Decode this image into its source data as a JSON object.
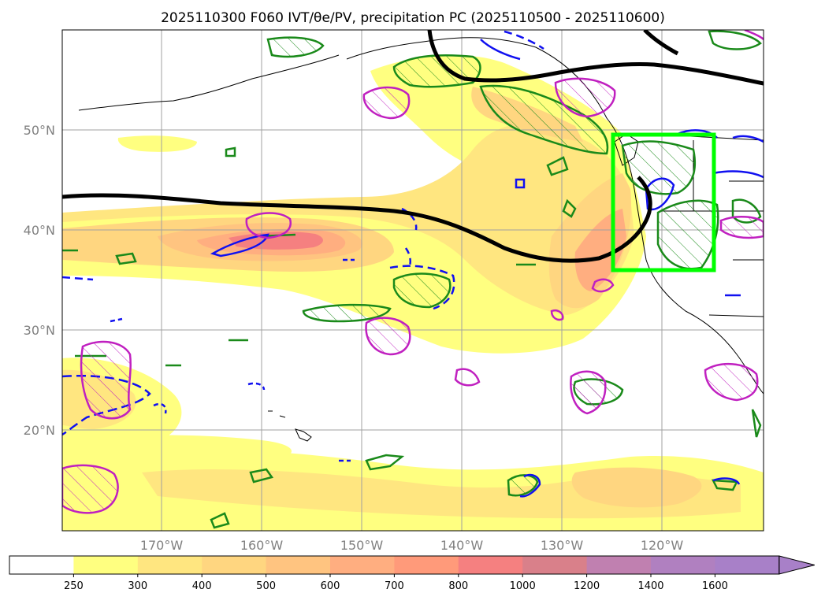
{
  "title": "2025110300 F060 IVT/θe/PV, precipitation PC (2025110500 - 2025110600)",
  "map": {
    "lat_ticks": [
      "50°N",
      "40°N",
      "30°N",
      "20°N"
    ],
    "lon_ticks": [
      "170°W",
      "160°W",
      "150°W",
      "140°W",
      "130°W",
      "120°W"
    ],
    "highlight_box": {
      "label": "region-box",
      "color": "#00ff00",
      "lon_range": [
        -125,
        -115
      ],
      "lat_range": [
        36,
        49.5
      ]
    }
  },
  "colorbar": {
    "labels": [
      "250",
      "300",
      "400",
      "500",
      "600",
      "700",
      "800",
      "1000",
      "1200",
      "1400",
      "1600"
    ],
    "colors": [
      "#ffffff",
      "#ffff80",
      "#ffe680",
      "#ffd680",
      "#ffc480",
      "#ffae80",
      "#ff9a7a",
      "#f58080",
      "#d9808a",
      "#c080b0",
      "#b080c0",
      "#a880c8"
    ],
    "extend": "max"
  }
}
